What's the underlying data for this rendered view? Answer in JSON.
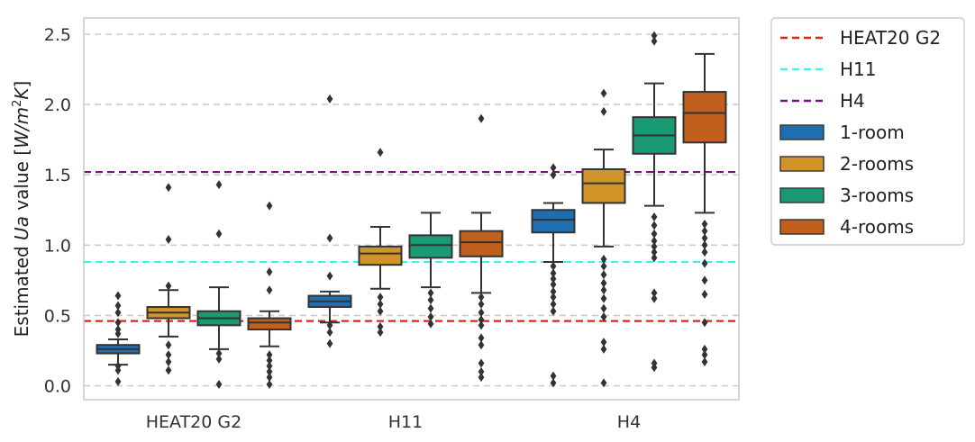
{
  "chart_data": {
    "type": "boxplot",
    "title": "",
    "xlabel": "",
    "ylabel": {
      "prefix": "Estimated ",
      "italic": "Ua",
      "middle": " value ",
      "unit_open": "[",
      "unit_italic": "W/m",
      "unit_sup": "2",
      "unit_italic_end": "K",
      "unit_close": "]"
    },
    "ylim": [
      -0.1,
      2.62
    ],
    "yticks": [
      0.0,
      0.5,
      1.0,
      1.5,
      2.0,
      2.5
    ],
    "ytick_labels": [
      "0.0",
      "0.5",
      "1.0",
      "1.5",
      "2.0",
      "2.5"
    ],
    "grid": "horizontal dashed",
    "legend_position": "outside right",
    "categories": [
      "HEAT20 G2",
      "H11",
      "H4"
    ],
    "reference_lines": [
      {
        "name": "HEAT20 G2",
        "value": 0.46,
        "color": "#e3211c"
      },
      {
        "name": "H11",
        "value": 0.88,
        "color": "#3ff0f0"
      },
      {
        "name": "H4",
        "value": 1.52,
        "color": "#7a0f80"
      }
    ],
    "series": [
      {
        "name": "1-room",
        "color": "#1f6fb0",
        "boxes": [
          {
            "whislo": 0.15,
            "q1": 0.23,
            "med": 0.26,
            "q3": 0.29,
            "whishi": 0.33,
            "fliers": [
              0.03,
              0.11,
              0.14,
              0.37,
              0.4,
              0.45,
              0.52,
              0.57,
              0.64
            ]
          },
          {
            "whislo": 0.45,
            "q1": 0.56,
            "med": 0.6,
            "q3": 0.64,
            "whishi": 0.67,
            "fliers": [
              0.3,
              0.38,
              0.43,
              0.78,
              1.05,
              2.04
            ]
          },
          {
            "whislo": 0.88,
            "q1": 1.09,
            "med": 1.18,
            "q3": 1.25,
            "whishi": 1.3,
            "fliers": [
              0.02,
              0.07,
              0.53,
              0.58,
              0.63,
              0.67,
              0.72,
              0.76,
              0.8,
              0.85,
              1.5,
              1.55
            ]
          }
        ]
      },
      {
        "name": "2-rooms",
        "color": "#d19428",
        "boxes": [
          {
            "whislo": 0.35,
            "q1": 0.48,
            "med": 0.52,
            "q3": 0.56,
            "whishi": 0.68,
            "fliers": [
              0.11,
              0.17,
              0.22,
              0.29,
              0.71,
              1.04,
              1.41
            ]
          },
          {
            "whislo": 0.69,
            "q1": 0.86,
            "med": 0.94,
            "q3": 0.99,
            "whishi": 1.13,
            "fliers": [
              0.38,
              0.42,
              0.53,
              0.58,
              0.63,
              1.66
            ]
          },
          {
            "whislo": 0.99,
            "q1": 1.3,
            "med": 1.44,
            "q3": 1.54,
            "whishi": 1.68,
            "fliers": [
              0.02,
              0.26,
              0.31,
              0.49,
              0.55,
              0.62,
              0.68,
              0.73,
              0.79,
              0.85,
              0.9,
              1.95,
              2.08
            ]
          }
        ]
      },
      {
        "name": "3-rooms",
        "color": "#1a9a73",
        "boxes": [
          {
            "whislo": 0.26,
            "q1": 0.43,
            "med": 0.48,
            "q3": 0.53,
            "whishi": 0.7,
            "fliers": [
              0.01,
              0.19,
              0.23,
              1.08,
              1.43
            ]
          },
          {
            "whislo": 0.7,
            "q1": 0.91,
            "med": 1.0,
            "q3": 1.07,
            "whishi": 1.23,
            "fliers": [
              0.44,
              0.49,
              0.55,
              0.61,
              0.66
            ]
          },
          {
            "whislo": 1.28,
            "q1": 1.65,
            "med": 1.78,
            "q3": 1.91,
            "whishi": 2.15,
            "fliers": [
              0.13,
              0.16,
              0.62,
              0.66,
              0.91,
              0.95,
              0.99,
              1.03,
              1.08,
              1.14,
              1.2,
              2.45,
              2.49
            ]
          }
        ]
      },
      {
        "name": "4-rooms",
        "color": "#c0601c",
        "boxes": [
          {
            "whislo": 0.28,
            "q1": 0.4,
            "med": 0.45,
            "q3": 0.48,
            "whishi": 0.53,
            "fliers": [
              0.01,
              0.06,
              0.1,
              0.14,
              0.18,
              0.22,
              0.68,
              0.81,
              1.28
            ]
          },
          {
            "whislo": 0.66,
            "q1": 0.92,
            "med": 1.02,
            "q3": 1.1,
            "whishi": 1.23,
            "fliers": [
              0.06,
              0.1,
              0.16,
              0.29,
              0.34,
              0.43,
              0.47,
              0.52,
              0.58,
              0.63,
              1.9
            ]
          },
          {
            "whislo": 1.23,
            "q1": 1.73,
            "med": 1.94,
            "q3": 2.09,
            "whishi": 2.36,
            "fliers": [
              0.17,
              0.22,
              0.26,
              0.45,
              0.65,
              0.75,
              0.87,
              0.95,
              1.0,
              1.05,
              1.1,
              1.15
            ]
          }
        ]
      }
    ],
    "legend_entries": [
      {
        "label": "HEAT20 G2",
        "kind": "line",
        "color": "#e3211c"
      },
      {
        "label": "H11",
        "kind": "line",
        "color": "#3ff0f0"
      },
      {
        "label": "H4",
        "kind": "line",
        "color": "#7a0f80"
      },
      {
        "label": "1-room",
        "kind": "box",
        "color": "#1f6fb0"
      },
      {
        "label": "2-rooms",
        "kind": "box",
        "color": "#d19428"
      },
      {
        "label": "3-rooms",
        "kind": "box",
        "color": "#1a9a73"
      },
      {
        "label": "4-rooms",
        "kind": "box",
        "color": "#c0601c"
      }
    ]
  }
}
